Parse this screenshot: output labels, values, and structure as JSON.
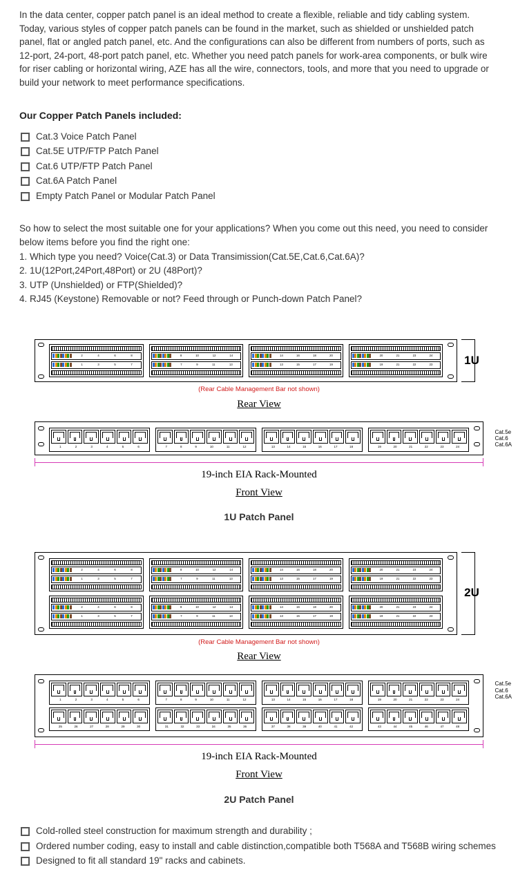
{
  "intro_text": "In the data center, copper patch panel is an ideal method to create a flexible, reliable and tidy cabling system. Today, various styles of copper patch panels can be found in the market, such as shielded or unshielded patch panel, flat or angled patch panel, etc. And the configurations can also be different from numbers of ports, such as 12-port, 24-port, 48-port patch panel, etc. Whether you need patch panels for work-area components, or bulk wire for riser cabling or horizontal wiring, AZE has all the wire, connectors, tools, and more that you need to upgrade or build your network to meet performance specifications.",
  "included_heading": "Our Copper Patch Panels included:",
  "included_items": [
    "Cat.3 Voice Patch Panel",
    "Cat.5E UTP/FTP Patch Panel",
    "Cat.6 UTP/FTP Patch Panel",
    "Cat.6A Patch Panel",
    "Empty Patch Panel or Modular Patch Panel"
  ],
  "guide_intro": "So how to select the most suitable one for your applications? When you come out this need, you need to consider below items before you find the right one:",
  "guide_lines": [
    "1. Which type you need?  Voice(Cat.3) or Data Transimission(Cat.5E,Cat.6,Cat.6A)?",
    "2. 1U(12Port,24Port,48Port) or 2U (48Port)?",
    "3. UTP (Unshielded) or FTP(Shielded)?",
    "4. RJ45 (Keystone) Removable or not? Feed through or Punch-down Patch Panel?"
  ],
  "diagram": {
    "cable_note": "(Rear Cable Management Bar not shown)",
    "rear_label": "Rear View",
    "front_label": "Front View",
    "mount_label": "19-inch EIA Rack-Mounted",
    "size_1u": "1U",
    "size_2u": "2U",
    "title_1u": "1U Patch Panel",
    "title_2u": "2U Patch Panel",
    "wire_colors": [
      "#2e6bd6",
      "#e08a00",
      "#1f9e1f",
      "#7a4a2a",
      "#2e6bd6",
      "#e08a00",
      "#1f9e1f",
      "#7a4a2a"
    ],
    "rear_groups_1u": [
      [
        "2",
        "4",
        "6",
        "8"
      ],
      [
        "8",
        "10",
        "12",
        "14"
      ],
      [
        "14",
        "16",
        "18",
        "20"
      ],
      [
        "20",
        "21",
        "23",
        "24"
      ]
    ],
    "rear_groups_bottom_1u": [
      [
        "1",
        "3",
        "5",
        "7"
      ],
      [
        "7",
        "9",
        "11",
        "13"
      ],
      [
        "13",
        "15",
        "17",
        "19"
      ],
      [
        "19",
        "21",
        "22",
        "23"
      ]
    ],
    "side_cats": [
      "Cat.5e",
      "Cat.6",
      "Cat.6A"
    ],
    "front_ports_1u": [
      [
        "1",
        "2",
        "3",
        "4",
        "5",
        "6"
      ],
      [
        "7",
        "8",
        "9",
        "10",
        "11",
        "12"
      ],
      [
        "13",
        "14",
        "15",
        "16",
        "17",
        "18"
      ],
      [
        "19",
        "20",
        "21",
        "22",
        "23",
        "24"
      ]
    ],
    "front_ports_2u_top": [
      [
        "1",
        "2",
        "3",
        "4",
        "5",
        "6"
      ],
      [
        "7",
        "8",
        "9",
        "10",
        "11",
        "12"
      ],
      [
        "13",
        "14",
        "15",
        "16",
        "17",
        "18"
      ],
      [
        "19",
        "20",
        "21",
        "22",
        "23",
        "24"
      ]
    ],
    "front_ports_2u_bottom": [
      [
        "25",
        "26",
        "27",
        "28",
        "29",
        "30"
      ],
      [
        "31",
        "32",
        "33",
        "34",
        "35",
        "36"
      ],
      [
        "37",
        "38",
        "39",
        "40",
        "41",
        "42"
      ],
      [
        "43",
        "44",
        "45",
        "46",
        "47",
        "48"
      ]
    ]
  },
  "features": [
    "Cold-rolled steel construction for maximum strength and durability ;",
    "Ordered number coding, easy to install and cable distinction,compatible both T568A and T568B wiring schemes",
    "Designed to fit all standard 19\" racks and cabinets."
  ]
}
